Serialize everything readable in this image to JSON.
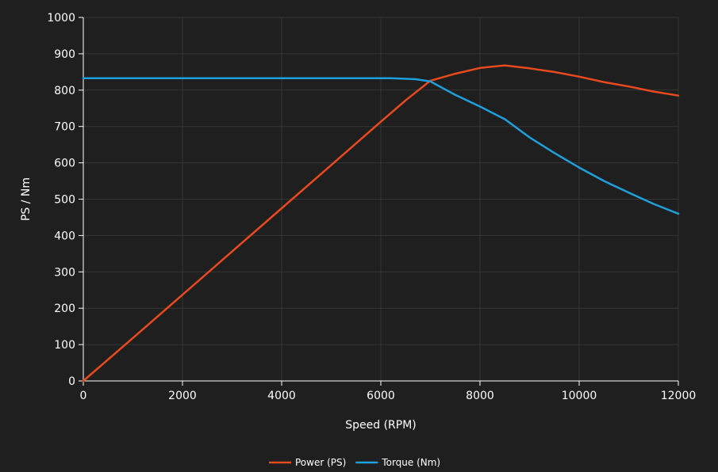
{
  "chart_data": {
    "type": "line",
    "title": "",
    "xlabel": "Speed (RPM)",
    "ylabel": "PS / Nm",
    "xlim": [
      0,
      12000
    ],
    "ylim": [
      0,
      1000
    ],
    "x_ticks": [
      0,
      2000,
      4000,
      6000,
      8000,
      10000,
      12000
    ],
    "y_ticks": [
      0,
      100,
      200,
      300,
      400,
      500,
      600,
      700,
      800,
      900,
      1000
    ],
    "grid": true,
    "legend_position": "bottom-center",
    "series": [
      {
        "name": "Power (PS)",
        "color": "#e8491d",
        "x": [
          0,
          1000,
          2000,
          3000,
          4000,
          5000,
          6000,
          6500,
          7000,
          7500,
          8000,
          8500,
          9000,
          9500,
          10000,
          10500,
          11000,
          11500,
          12000
        ],
        "y": [
          0,
          118,
          237,
          356,
          475,
          594,
          713,
          772,
          826,
          845,
          861,
          868,
          860,
          850,
          837,
          822,
          810,
          796,
          785
        ]
      },
      {
        "name": "Torque (Nm)",
        "color": "#1ea0dc",
        "x": [
          0,
          1000,
          2000,
          3000,
          4000,
          5000,
          6000,
          6200,
          6700,
          7000,
          7500,
          8000,
          8500,
          9000,
          9500,
          10000,
          10500,
          11000,
          11500,
          12000
        ],
        "y": [
          833,
          833,
          833,
          833,
          833,
          833,
          833,
          833,
          830,
          824,
          787,
          755,
          720,
          670,
          627,
          587,
          550,
          518,
          487,
          460
        ]
      }
    ]
  }
}
